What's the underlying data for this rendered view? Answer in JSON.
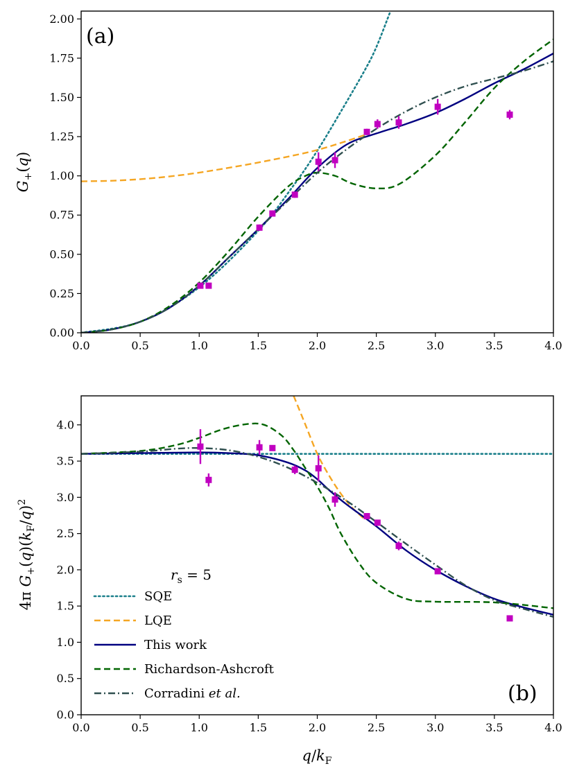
{
  "colors": {
    "sqe": "#1a7f8a",
    "lqe": "#f5a623",
    "this_work": "#000080",
    "richardson_ashcroft": "#006400",
    "corradini": "#2f4f4f",
    "data_points": "#c000c0"
  },
  "chart_data": [
    {
      "id": "a",
      "type": "line",
      "panel_label": "(a)",
      "xlabel": "",
      "ylabel": "G+(q)",
      "xlim": [
        0.0,
        4.0
      ],
      "ylim": [
        0.0,
        2.05
      ],
      "xticks": [
        0.0,
        0.5,
        1.0,
        1.5,
        2.0,
        2.5,
        3.0,
        3.5,
        4.0
      ],
      "xtick_labels": [
        "0.0",
        "0.5",
        "1.0",
        "1.5",
        "2.0",
        "2.5",
        "3.0",
        "3.5",
        "4.0"
      ],
      "yticks": [
        0.0,
        0.25,
        0.5,
        0.75,
        1.0,
        1.25,
        1.5,
        1.75,
        2.0
      ],
      "ytick_labels": [
        "0.00",
        "0.25",
        "0.50",
        "0.75",
        "1.00",
        "1.25",
        "1.50",
        "1.75",
        "2.00"
      ],
      "series": [
        {
          "name": "SQE",
          "style": "dotted",
          "color_key": "sqe",
          "x": [
            0.0,
            0.5,
            1.0,
            1.5,
            1.8,
            2.0,
            2.2,
            2.4,
            2.5,
            2.62
          ],
          "y": [
            0.0,
            0.07,
            0.29,
            0.65,
            0.94,
            1.16,
            1.41,
            1.67,
            1.82,
            2.05
          ]
        },
        {
          "name": "LQE",
          "style": "dashed",
          "color_key": "lqe",
          "x": [
            0.0,
            0.3,
            0.6,
            0.9,
            1.2,
            1.5,
            1.8,
            2.0,
            2.2,
            2.4
          ],
          "y": [
            0.965,
            0.97,
            0.985,
            1.01,
            1.045,
            1.085,
            1.13,
            1.165,
            1.21,
            1.26
          ]
        },
        {
          "name": "This work",
          "style": "solid",
          "color_key": "this_work",
          "x": [
            0.0,
            0.25,
            0.5,
            0.75,
            1.0,
            1.25,
            1.5,
            1.75,
            2.0,
            2.25,
            2.5,
            2.75,
            3.0,
            3.25,
            3.5,
            3.75,
            4.0
          ],
          "y": [
            0.0,
            0.02,
            0.07,
            0.16,
            0.3,
            0.48,
            0.66,
            0.85,
            1.05,
            1.2,
            1.27,
            1.33,
            1.4,
            1.49,
            1.59,
            1.68,
            1.78
          ]
        },
        {
          "name": "Richardson-Ashcroft",
          "style": "dashed",
          "color_key": "richardson_ashcroft",
          "x": [
            0.0,
            0.25,
            0.5,
            0.75,
            1.0,
            1.25,
            1.5,
            1.75,
            1.9,
            2.0,
            2.15,
            2.3,
            2.5,
            2.7,
            3.0,
            3.25,
            3.5,
            3.75,
            4.0
          ],
          "y": [
            0.0,
            0.02,
            0.07,
            0.17,
            0.32,
            0.52,
            0.74,
            0.93,
            1.0,
            1.02,
            1.0,
            0.95,
            0.92,
            0.95,
            1.13,
            1.34,
            1.56,
            1.73,
            1.87
          ]
        },
        {
          "name": "Corradini et al.",
          "style": "dashdot",
          "color_key": "corradini",
          "x": [
            0.0,
            0.25,
            0.5,
            0.75,
            1.0,
            1.25,
            1.5,
            1.75,
            2.0,
            2.25,
            2.5,
            2.75,
            3.0,
            3.25,
            3.5,
            3.75,
            4.0
          ],
          "y": [
            0.0,
            0.02,
            0.07,
            0.16,
            0.3,
            0.48,
            0.66,
            0.84,
            1.02,
            1.17,
            1.3,
            1.41,
            1.5,
            1.57,
            1.62,
            1.67,
            1.73
          ]
        }
      ],
      "points": {
        "x": [
          1.01,
          1.08,
          1.51,
          1.62,
          1.81,
          2.01,
          2.15,
          2.42,
          2.51,
          2.69,
          3.02,
          3.63
        ],
        "y": [
          0.3,
          0.3,
          0.67,
          0.76,
          0.88,
          1.09,
          1.1,
          1.28,
          1.33,
          1.34,
          1.44,
          1.39
        ],
        "err": [
          0.01,
          0.01,
          0.02,
          0.02,
          0.02,
          0.06,
          0.05,
          0.02,
          0.03,
          0.04,
          0.05,
          0.03
        ]
      }
    },
    {
      "id": "b",
      "type": "line",
      "panel_label": "(b)",
      "xlabel": "q/kF",
      "ylabel": "4π G+(q)(kF/q)²",
      "xlim": [
        0.0,
        4.0
      ],
      "ylim": [
        0.0,
        4.4
      ],
      "xticks": [
        0.0,
        0.5,
        1.0,
        1.5,
        2.0,
        2.5,
        3.0,
        3.5,
        4.0
      ],
      "xtick_labels": [
        "0.0",
        "0.5",
        "1.0",
        "1.5",
        "2.0",
        "2.5",
        "3.0",
        "3.5",
        "4.0"
      ],
      "yticks": [
        0.0,
        0.5,
        1.0,
        1.5,
        2.0,
        2.5,
        3.0,
        3.5,
        4.0
      ],
      "ytick_labels": [
        "0.0",
        "0.5",
        "1.0",
        "1.5",
        "2.0",
        "2.5",
        "3.0",
        "3.5",
        "4.0"
      ],
      "series": [
        {
          "name": "SQE",
          "style": "dotted",
          "color_key": "sqe",
          "x": [
            0.0,
            4.0
          ],
          "y": [
            3.6,
            3.6
          ]
        },
        {
          "name": "LQE",
          "style": "dashed",
          "color_key": "lqe",
          "x": [
            1.8,
            1.9,
            2.0,
            2.1,
            2.2,
            2.3,
            2.4
          ],
          "y": [
            4.4,
            4.0,
            3.6,
            3.3,
            3.05,
            2.85,
            2.7
          ]
        },
        {
          "name": "This work",
          "style": "solid",
          "color_key": "this_work",
          "x": [
            0.0,
            0.5,
            1.0,
            1.25,
            1.5,
            1.75,
            1.9,
            2.0,
            2.1,
            2.25,
            2.5,
            2.75,
            3.0,
            3.25,
            3.5,
            3.75,
            4.0
          ],
          "y": [
            3.6,
            3.61,
            3.62,
            3.61,
            3.58,
            3.48,
            3.37,
            3.25,
            3.1,
            2.9,
            2.6,
            2.27,
            2.0,
            1.78,
            1.6,
            1.48,
            1.38
          ]
        },
        {
          "name": "Richardson-Ashcroft",
          "style": "dashed",
          "color_key": "richardson_ashcroft",
          "x": [
            0.0,
            0.5,
            0.8,
            1.0,
            1.2,
            1.4,
            1.55,
            1.7,
            1.8,
            1.9,
            2.0,
            2.1,
            2.2,
            2.35,
            2.5,
            2.75,
            3.0,
            3.5,
            4.0
          ],
          "y": [
            3.6,
            3.64,
            3.72,
            3.82,
            3.94,
            4.01,
            4.0,
            3.85,
            3.65,
            3.4,
            3.15,
            2.85,
            2.5,
            2.1,
            1.82,
            1.6,
            1.56,
            1.55,
            1.47
          ]
        },
        {
          "name": "Corradini et al.",
          "style": "dashdot",
          "color_key": "corradini",
          "x": [
            0.0,
            0.5,
            0.8,
            1.0,
            1.25,
            1.5,
            1.75,
            2.0,
            2.25,
            2.5,
            2.75,
            3.0,
            3.25,
            3.5,
            3.75,
            4.0
          ],
          "y": [
            3.6,
            3.63,
            3.67,
            3.68,
            3.65,
            3.56,
            3.41,
            3.2,
            2.95,
            2.66,
            2.36,
            2.07,
            1.79,
            1.58,
            1.46,
            1.35
          ]
        }
      ],
      "points": {
        "x": [
          1.01,
          1.08,
          1.51,
          1.62,
          1.81,
          2.01,
          2.15,
          2.42,
          2.51,
          2.69,
          3.02,
          3.63
        ],
        "y": [
          3.7,
          3.24,
          3.69,
          3.68,
          3.38,
          3.4,
          2.97,
          2.74,
          2.65,
          2.33,
          1.98,
          1.33
        ],
        "err": [
          0.24,
          0.09,
          0.1,
          0.04,
          0.06,
          0.18,
          0.1,
          0.04,
          0.04,
          0.06,
          0.04,
          0.03
        ]
      },
      "legend": {
        "title": "rs = 5",
        "placement": "lower-left",
        "entries": [
          "SQE",
          "LQE",
          "This work",
          "Richardson-Ashcroft",
          "Corradini et al."
        ]
      }
    }
  ]
}
